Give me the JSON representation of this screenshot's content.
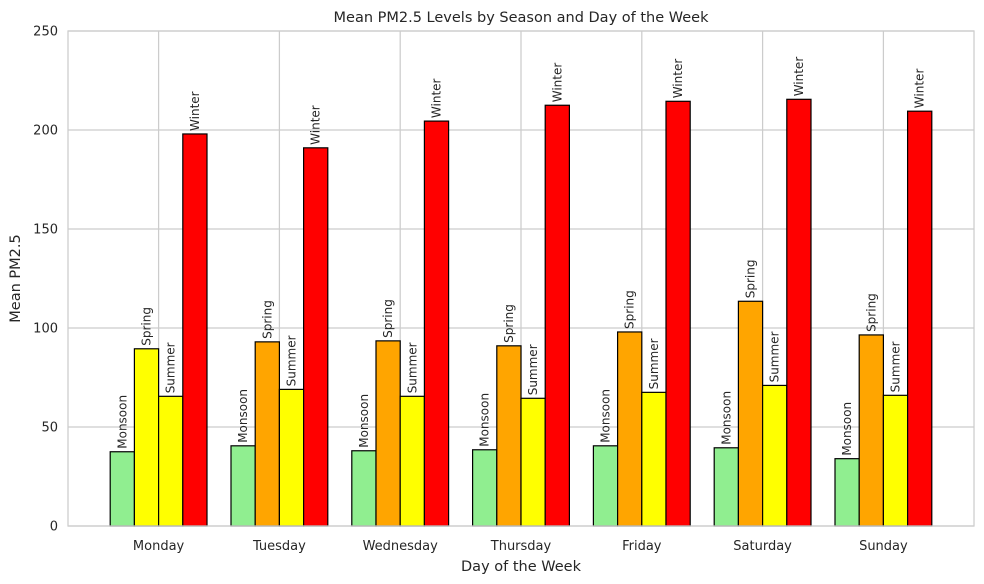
{
  "chart_data": {
    "type": "bar",
    "title": "Mean PM2.5 Levels by Season and Day of the Week",
    "xlabel": "Day of the Week",
    "ylabel": "Mean PM2.5",
    "ylim": [
      0,
      250
    ],
    "yticks": [
      0,
      50,
      100,
      150,
      200,
      250
    ],
    "grid": true,
    "categories": [
      "Monday",
      "Tuesday",
      "Wednesday",
      "Thursday",
      "Friday",
      "Saturday",
      "Sunday"
    ],
    "series": [
      {
        "name": "Monsoon",
        "values": [
          37.5,
          40.5,
          38.0,
          38.5,
          40.5,
          39.5,
          34.0
        ]
      },
      {
        "name": "Spring",
        "values": [
          89.5,
          93.0,
          93.5,
          91.0,
          98.0,
          113.5,
          96.5
        ]
      },
      {
        "name": "Summer",
        "values": [
          65.5,
          69.0,
          65.5,
          64.5,
          67.5,
          71.0,
          66.0
        ]
      },
      {
        "name": "Winter",
        "values": [
          198.0,
          191.0,
          204.5,
          212.5,
          214.5,
          215.5,
          209.5
        ]
      }
    ],
    "bar_colors": [
      [
        "#90ee90",
        "#ffff00",
        "#ffff00",
        "#ff0000"
      ],
      [
        "#90ee90",
        "#ffa500",
        "#ffff00",
        "#ff0000"
      ],
      [
        "#90ee90",
        "#ffa500",
        "#ffff00",
        "#ff0000"
      ],
      [
        "#90ee90",
        "#ffa500",
        "#ffff00",
        "#ff0000"
      ],
      [
        "#90ee90",
        "#ffa500",
        "#ffff00",
        "#ff0000"
      ],
      [
        "#90ee90",
        "#ffa500",
        "#ffff00",
        "#ff0000"
      ],
      [
        "#90ee90",
        "#ffa500",
        "#ffff00",
        "#ff0000"
      ]
    ],
    "bar_edge_color": "#000000",
    "grid_color": "#cccccc",
    "axes_color": "#cccccc"
  }
}
